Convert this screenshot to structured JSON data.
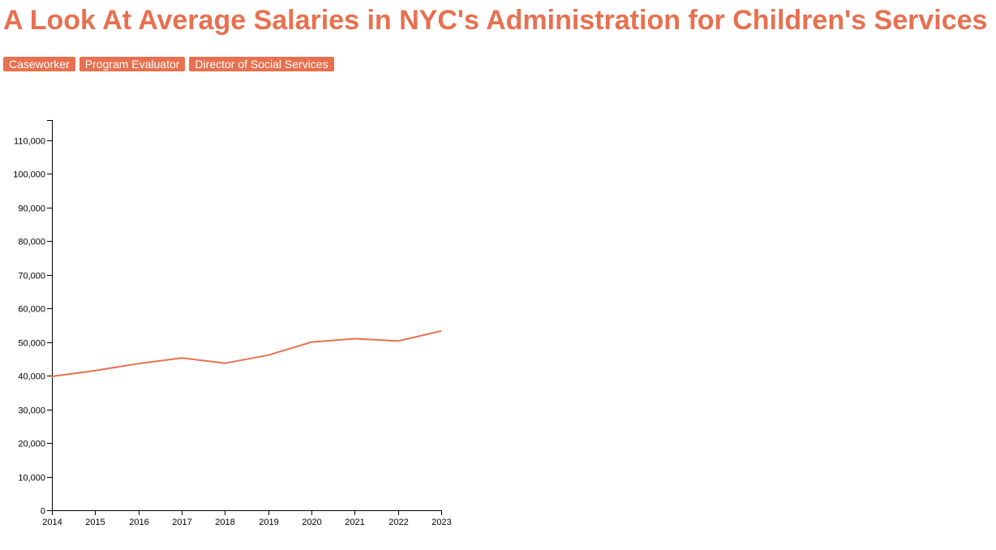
{
  "page": {
    "title": "A Look At Average Salaries in NYC's Administration for Children's Services"
  },
  "buttons": [
    {
      "label": "Caseworker"
    },
    {
      "label": "Program Evaluator"
    },
    {
      "label": "Director of Social Services"
    }
  ],
  "colors": {
    "accent": "#e8704f",
    "axis": "#000000",
    "button_text": "#ffffff"
  },
  "chart_data": {
    "type": "line",
    "title": "",
    "xlabel": "",
    "ylabel": "",
    "x": [
      2014,
      2015,
      2016,
      2017,
      2018,
      2019,
      2020,
      2021,
      2022,
      2023
    ],
    "series": [
      {
        "values": [
          39800,
          41500,
          43600,
          45300,
          43700,
          46100,
          50000,
          51000,
          50300,
          53300
        ]
      }
    ],
    "ylim": [
      0,
      116000
    ],
    "yticks": [
      0,
      10000,
      20000,
      30000,
      40000,
      50000,
      60000,
      70000,
      80000,
      90000,
      100000,
      110000
    ],
    "ytick_labels": [
      "0",
      "10,000",
      "20,000",
      "30,000",
      "40,000",
      "50,000",
      "60,000",
      "70,000",
      "80,000",
      "90,000",
      "100,000",
      "110,000"
    ],
    "xtick_labels": [
      "2014",
      "2015",
      "2016",
      "2017",
      "2018",
      "2019",
      "2020",
      "2021",
      "2022",
      "2023"
    ],
    "grid": false,
    "legend": "none"
  }
}
